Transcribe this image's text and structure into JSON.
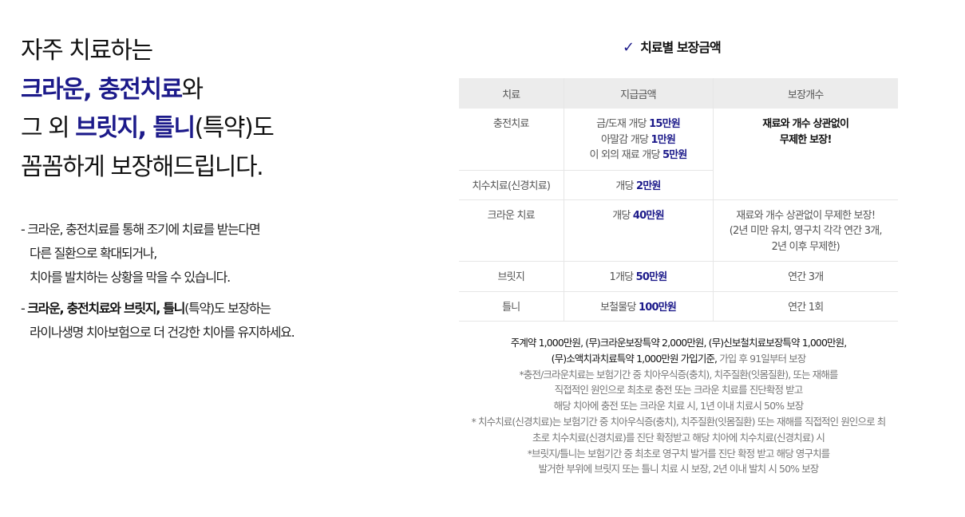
{
  "title": {
    "l1": "자주 치료하는",
    "l2a": "크라운, 충전치료",
    "l2b": "와",
    "l3a": "그 외 ",
    "l3b": "브릿지, 틀니",
    "l3c": "(특약)도",
    "l4": "꼼꼼하게 보장해드립니다."
  },
  "body": {
    "l1": "- 크라운, 충전치료를 통해 조기에 치료를 받는다면",
    "l2": "다른 질환으로 확대되거나,",
    "l3": "치아를 발치하는 상황을 막을 수 있습니다.",
    "l4a": "- ",
    "l4b": "크라운, 충전치료와 브릿지, 틀니",
    "l4c": "(특약)도 보장하는",
    "l5": "라이나생명 치아보험으로 더 건강한 치아를 유지하세요."
  },
  "section": {
    "check_icon": "✓",
    "title": "치료별 보장금액"
  },
  "table": {
    "headers": [
      "치료",
      "지급금액",
      "보장개수"
    ],
    "rows": [
      {
        "name": "충전치료",
        "amounts": [
          {
            "pre": "금/도재 개당 ",
            "val": "15만원"
          },
          {
            "pre": "아말감 개당 ",
            "val": "1만원"
          },
          {
            "pre": "이 외의 재료 개당 ",
            "val": "5만원"
          }
        ],
        "count1": "재료와 개수 상관없이",
        "count2": "무제한 보장!"
      },
      {
        "name": "치수치료(신경치료)",
        "pre": "개당 ",
        "val": "2만원"
      },
      {
        "name": "크라운 치료",
        "pre": "개당 ",
        "val": "40만원",
        "count_bold": "재료와 개수 상관없이 무제한 보장!",
        "count_l2": "(2년 미만 유치, 영구치 각각 연간 3개,",
        "count_l3": "2년 이후 무제한)"
      },
      {
        "name": "브릿지",
        "pre": "1개당 ",
        "val": "50만원",
        "count": "연간 3개"
      },
      {
        "name": "틀니",
        "pre": "보철물당 ",
        "val": "100만원",
        "count": "연간 1회"
      }
    ]
  },
  "notes": {
    "l1": "주계약 1,000만원, (무)크라운보장특약 2,000만원, (무)신보철치료보장특약 1,000만원,",
    "l2a": "(무)소액치과치료특약 1,000만원 가입기준,",
    "l2b": " 가입 후 91일부터 보장",
    "l3": "*충전/크라운치료는 보험기간 중 치아우식증(충치), 치주질환(잇몸질환), 또는 재해를",
    "l4": "직접적인 원인으로 최초로 충전 또는 크라운 치료를 진단확정 받고",
    "l5": "해당 치아에 충전 또는 크라운 치료 시, 1년 이내 치료시 50% 보장",
    "l6": "* 치수치료(신경치료)는 보험기간 중 치아우식증(충치), 치주질환(잇몸질환) 또는 재해를 직접적인 원인으로 최",
    "l7": "초로 치수치료(신경치료)를 진단 확정받고 해당 치아에 치수치료(신경치료) 시",
    "l8": "*브릿지/틀니는 보험기간 중 최초로 영구치 발거를 진단 확정 받고 해당 영구치를",
    "l9": "발거한 부위에 브릿지 또는 틀니 치료 시 보장, 2년 이내 발치 시 50% 보장"
  },
  "colors": {
    "accent": "#1c1a8a",
    "header_bg": "#ececec"
  }
}
